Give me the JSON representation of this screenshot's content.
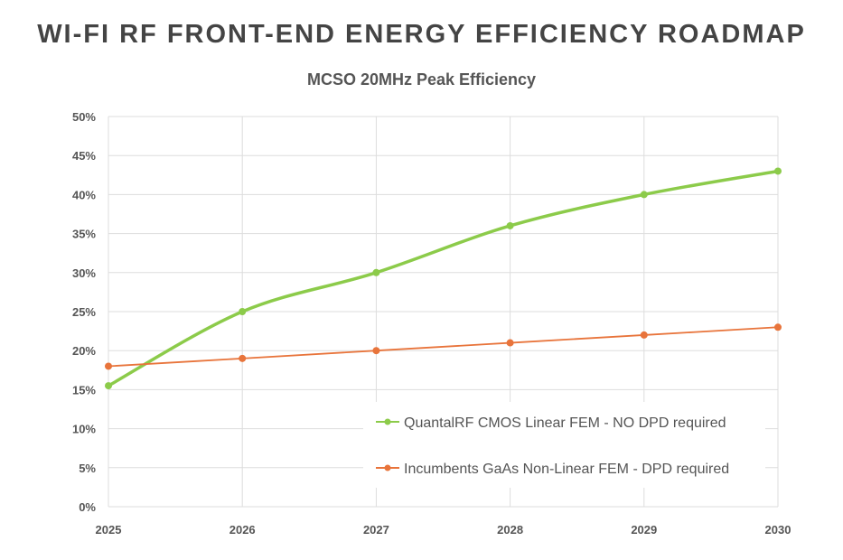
{
  "chart_data": {
    "type": "line",
    "title": "WI-FI RF FRONT-END ENERGY EFFICIENCY ROADMAP",
    "subtitle": "MCSO 20MHz Peak Efficiency",
    "xlabel": "",
    "ylabel": "",
    "x": [
      "2025",
      "2026",
      "2027",
      "2028",
      "2029",
      "2030"
    ],
    "ylim": [
      0,
      50
    ],
    "yticks": [
      "0%",
      "5%",
      "10%",
      "15%",
      "20%",
      "25%",
      "30%",
      "35%",
      "40%",
      "45%",
      "50%"
    ],
    "grid": true,
    "legend_placement": "bottom-right",
    "smooth": true,
    "series": [
      {
        "name": "QuantalRF CMOS Linear FEM - NO DPD required",
        "color": "#8CCB4A",
        "values": [
          15.5,
          25,
          30,
          36,
          40,
          43
        ]
      },
      {
        "name": "Incumbents GaAs Non-Linear FEM - DPD required",
        "color": "#E8743B",
        "values": [
          18,
          19,
          20,
          21,
          22,
          23
        ]
      }
    ]
  }
}
